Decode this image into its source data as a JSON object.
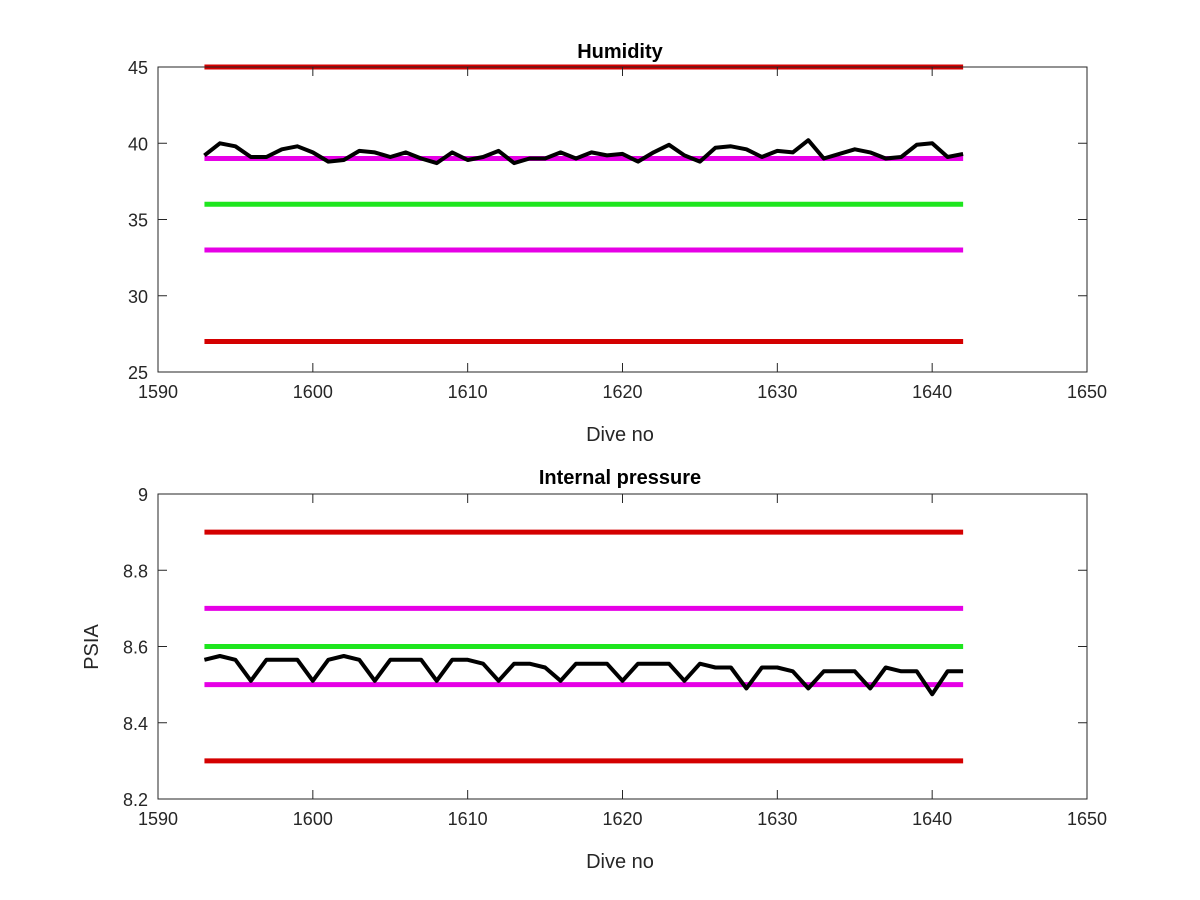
{
  "chart_data": [
    {
      "type": "line",
      "title": "Humidity",
      "xlabel": "Dive no",
      "ylabel": "",
      "xlim": [
        1590,
        1650
      ],
      "ylim": [
        25,
        45
      ],
      "xticks": [
        1590,
        1600,
        1610,
        1620,
        1630,
        1640,
        1650
      ],
      "yticks": [
        25,
        30,
        35,
        40,
        45
      ],
      "grid": false,
      "reference_lines": [
        {
          "color": "#d40000",
          "y": 45,
          "x": [
            1593,
            1642
          ]
        },
        {
          "color": "#e600e6",
          "y": 39,
          "x": [
            1593,
            1642
          ]
        },
        {
          "color": "#1ee61e",
          "y": 36,
          "x": [
            1593,
            1642
          ]
        },
        {
          "color": "#e600e6",
          "y": 33,
          "x": [
            1593,
            1642
          ]
        },
        {
          "color": "#d40000",
          "y": 27,
          "x": [
            1593,
            1642
          ]
        }
      ],
      "series": [
        {
          "color": "#000000",
          "x": [
            1593,
            1594,
            1595,
            1596,
            1597,
            1598,
            1599,
            1600,
            1601,
            1602,
            1603,
            1604,
            1605,
            1606,
            1607,
            1608,
            1609,
            1610,
            1611,
            1612,
            1613,
            1614,
            1615,
            1616,
            1617,
            1618,
            1619,
            1620,
            1621,
            1622,
            1623,
            1624,
            1625,
            1626,
            1627,
            1628,
            1629,
            1630,
            1631,
            1632,
            1633,
            1634,
            1635,
            1636,
            1637,
            1638,
            1639,
            1640,
            1641,
            1642
          ],
          "y": [
            39.2,
            40.0,
            39.8,
            39.1,
            39.1,
            39.6,
            39.8,
            39.4,
            38.8,
            38.9,
            39.5,
            39.4,
            39.1,
            39.4,
            39.0,
            38.7,
            39.4,
            38.9,
            39.1,
            39.5,
            38.7,
            39.0,
            39.0,
            39.4,
            39.0,
            39.4,
            39.2,
            39.3,
            38.8,
            39.4,
            39.9,
            39.2,
            38.8,
            39.7,
            39.8,
            39.6,
            39.1,
            39.5,
            39.4,
            40.2,
            39.0,
            39.3,
            39.6,
            39.4,
            39.0,
            39.1,
            39.9,
            40.0,
            39.1,
            39.3
          ]
        }
      ]
    },
    {
      "type": "line",
      "title": "Internal pressure",
      "xlabel": "Dive no",
      "ylabel": "PSIA",
      "xlim": [
        1590,
        1650
      ],
      "ylim": [
        8.2,
        9.0
      ],
      "xticks": [
        1590,
        1600,
        1610,
        1620,
        1630,
        1640,
        1650
      ],
      "yticks": [
        8.2,
        8.4,
        8.6,
        8.8,
        9.0
      ],
      "ytick_labels": [
        "8.2",
        "8.4",
        "8.6",
        "8.8",
        "9"
      ],
      "grid": false,
      "reference_lines": [
        {
          "color": "#d40000",
          "y": 8.9,
          "x": [
            1593,
            1642
          ]
        },
        {
          "color": "#e600e6",
          "y": 8.7,
          "x": [
            1593,
            1642
          ]
        },
        {
          "color": "#1ee61e",
          "y": 8.6,
          "x": [
            1593,
            1642
          ]
        },
        {
          "color": "#e600e6",
          "y": 8.5,
          "x": [
            1593,
            1642
          ]
        },
        {
          "color": "#d40000",
          "y": 8.3,
          "x": [
            1593,
            1642
          ]
        }
      ],
      "series": [
        {
          "color": "#000000",
          "x": [
            1593,
            1594,
            1595,
            1596,
            1597,
            1598,
            1599,
            1600,
            1601,
            1602,
            1603,
            1604,
            1605,
            1606,
            1607,
            1608,
            1609,
            1610,
            1611,
            1612,
            1613,
            1614,
            1615,
            1616,
            1617,
            1618,
            1619,
            1620,
            1621,
            1622,
            1623,
            1624,
            1625,
            1626,
            1627,
            1628,
            1629,
            1630,
            1631,
            1632,
            1633,
            1634,
            1635,
            1636,
            1637,
            1638,
            1639,
            1640,
            1641,
            1642
          ],
          "y": [
            8.565,
            8.575,
            8.565,
            8.51,
            8.565,
            8.565,
            8.565,
            8.51,
            8.565,
            8.575,
            8.565,
            8.51,
            8.565,
            8.565,
            8.565,
            8.51,
            8.565,
            8.565,
            8.555,
            8.51,
            8.555,
            8.555,
            8.545,
            8.51,
            8.555,
            8.555,
            8.555,
            8.51,
            8.555,
            8.555,
            8.555,
            8.51,
            8.555,
            8.545,
            8.545,
            8.49,
            8.545,
            8.545,
            8.535,
            8.49,
            8.535,
            8.535,
            8.535,
            8.49,
            8.545,
            8.535,
            8.535,
            8.475,
            8.535,
            8.535
          ]
        }
      ]
    }
  ]
}
